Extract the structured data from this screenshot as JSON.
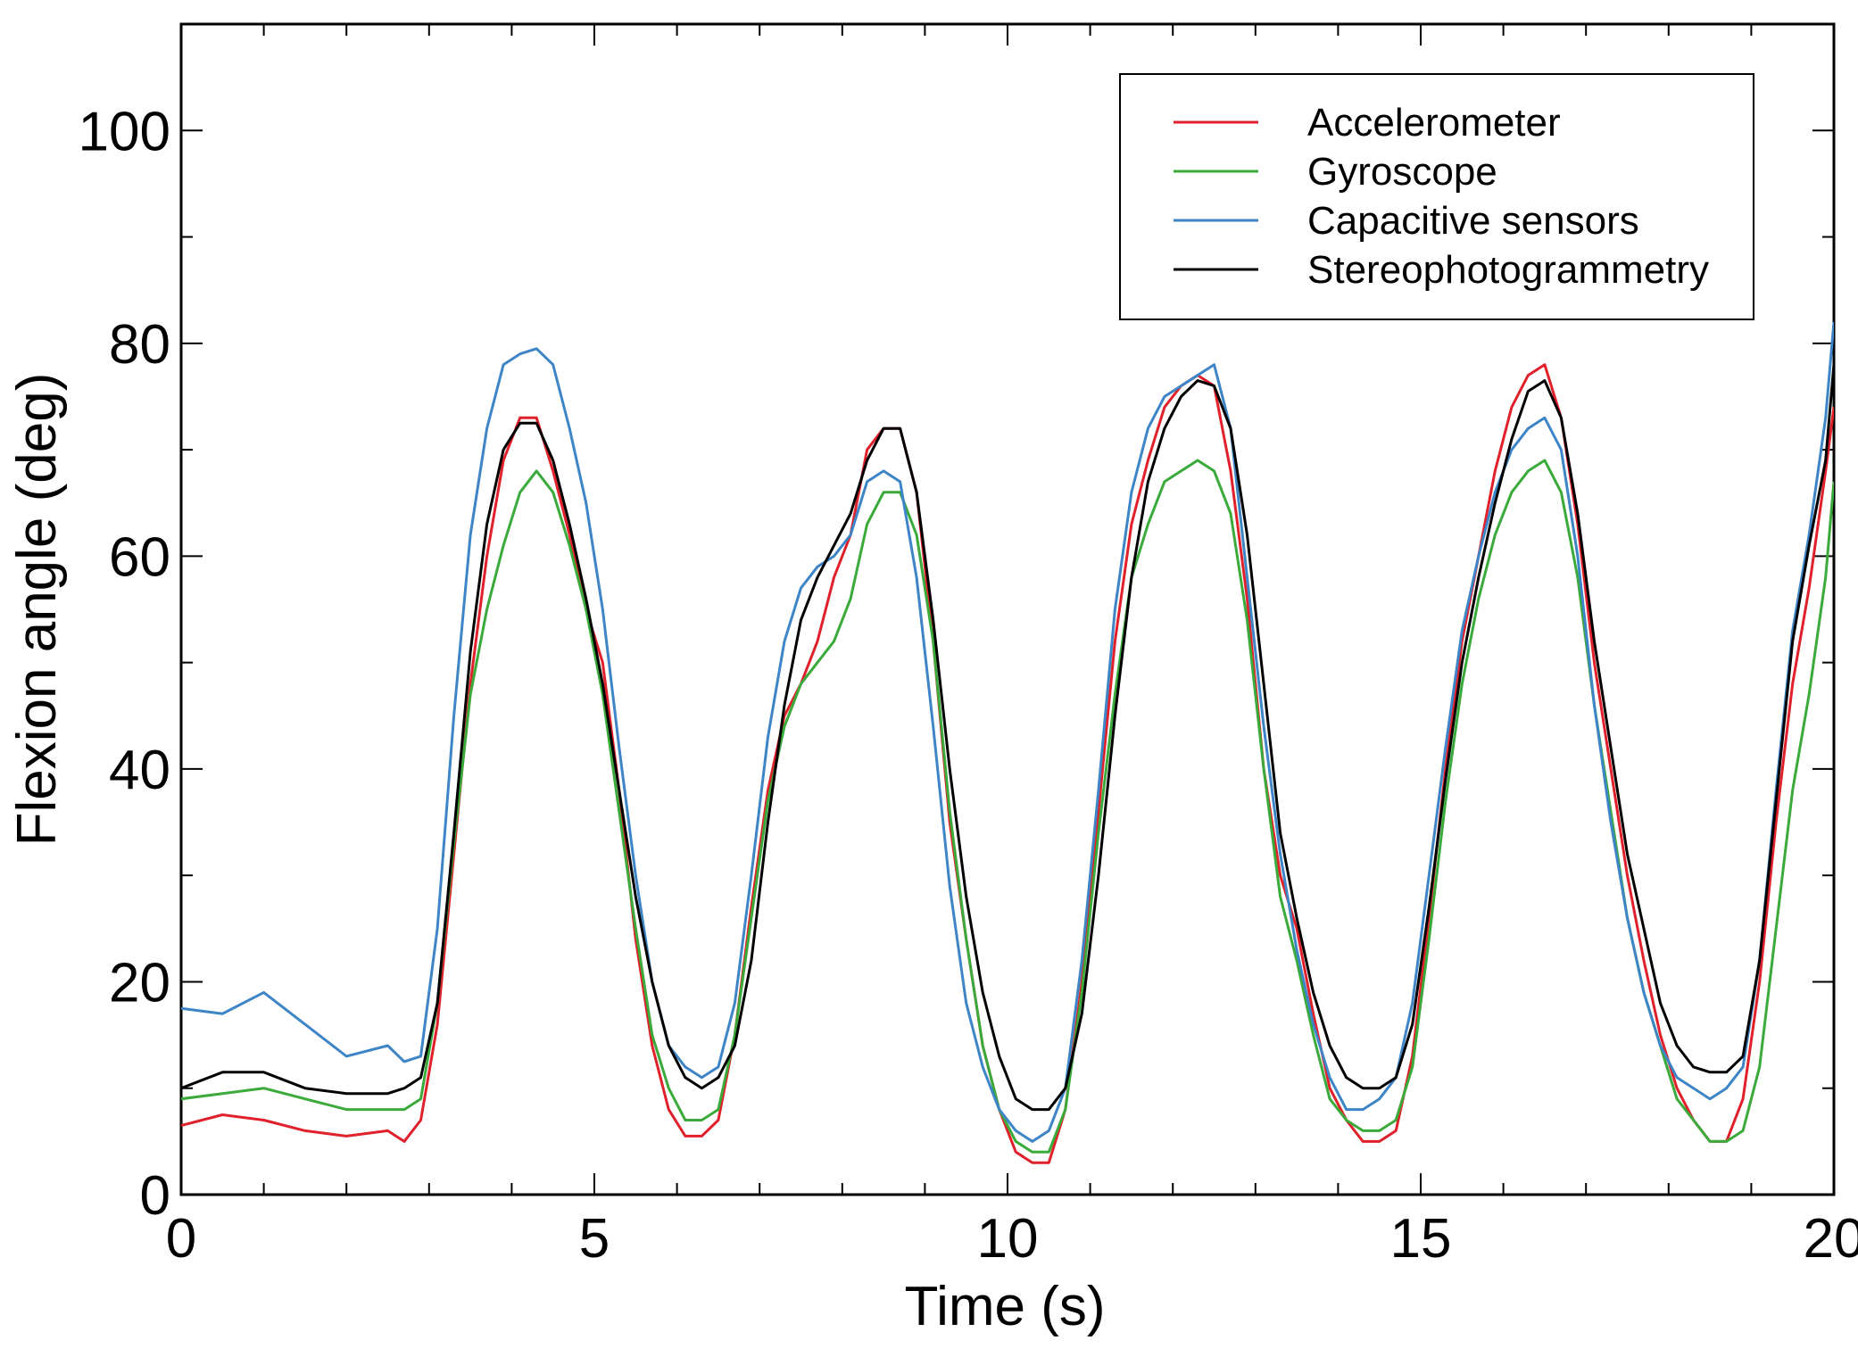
{
  "chart_data": {
    "type": "line",
    "title": "",
    "xlabel": "Time (s)",
    "ylabel": "Flexion angle (deg)",
    "xlim": [
      0,
      20
    ],
    "ylim": [
      0,
      110
    ],
    "xticks": [
      0,
      5,
      10,
      15,
      20
    ],
    "xtick_labels": [
      "0",
      "5",
      "10",
      "15",
      "20"
    ],
    "yticks": [
      0,
      20,
      40,
      60,
      80,
      100
    ],
    "ytick_labels": [
      "0",
      "20",
      "40",
      "60",
      "80",
      "100"
    ],
    "grid": false,
    "legend_position": "top-right",
    "series": [
      {
        "name": "Accelerometer",
        "color": "#e0202a",
        "x": [
          0,
          0.5,
          1.0,
          1.5,
          2.0,
          2.5,
          2.7,
          2.9,
          3.1,
          3.3,
          3.5,
          3.7,
          3.9,
          4.1,
          4.3,
          4.5,
          4.7,
          4.9,
          5.1,
          5.3,
          5.5,
          5.7,
          5.9,
          6.1,
          6.3,
          6.5,
          6.7,
          6.9,
          7.1,
          7.3,
          7.5,
          7.7,
          7.9,
          8.1,
          8.3,
          8.5,
          8.7,
          8.9,
          9.1,
          9.3,
          9.5,
          9.7,
          9.9,
          10.1,
          10.3,
          10.5,
          10.7,
          10.9,
          11.1,
          11.3,
          11.5,
          11.7,
          11.9,
          12.1,
          12.3,
          12.5,
          12.7,
          12.9,
          13.1,
          13.3,
          13.5,
          13.7,
          13.9,
          14.1,
          14.3,
          14.5,
          14.7,
          14.9,
          15.1,
          15.3,
          15.5,
          15.7,
          15.9,
          16.1,
          16.3,
          16.5,
          16.7,
          16.9,
          17.1,
          17.3,
          17.5,
          17.7,
          17.9,
          18.1,
          18.3,
          18.5,
          18.7,
          18.9,
          19.1,
          19.3,
          19.5,
          19.7,
          19.9,
          20.0
        ],
        "y": [
          6.5,
          7.5,
          7,
          6,
          5.5,
          6,
          5,
          7,
          16,
          32,
          48,
          60,
          69,
          73,
          73,
          68,
          62,
          55,
          50,
          38,
          24,
          14,
          8,
          5.5,
          5.5,
          7,
          15,
          27,
          38,
          45,
          48,
          52,
          58,
          62,
          70,
          72,
          72,
          66,
          52,
          35,
          24,
          14,
          8,
          4,
          3,
          3,
          8,
          20,
          36,
          52,
          63,
          69,
          74,
          76,
          77,
          76,
          68,
          56,
          40,
          30,
          25,
          17,
          10,
          7,
          5,
          5,
          6,
          13,
          26,
          40,
          52,
          60,
          68,
          74,
          77,
          78,
          73,
          63,
          50,
          40,
          30,
          22,
          15,
          10,
          7,
          5,
          5,
          9,
          20,
          35,
          48,
          57,
          68,
          74
        ]
      },
      {
        "name": "Gyroscope",
        "color": "#3aaa3a",
        "x": [
          0,
          0.5,
          1.0,
          1.5,
          2.0,
          2.5,
          2.7,
          2.9,
          3.1,
          3.3,
          3.5,
          3.7,
          3.9,
          4.1,
          4.3,
          4.5,
          4.7,
          4.9,
          5.1,
          5.3,
          5.5,
          5.7,
          5.9,
          6.1,
          6.3,
          6.5,
          6.7,
          6.9,
          7.1,
          7.3,
          7.5,
          7.7,
          7.9,
          8.1,
          8.3,
          8.5,
          8.7,
          8.9,
          9.1,
          9.3,
          9.5,
          9.7,
          9.9,
          10.1,
          10.3,
          10.5,
          10.7,
          10.9,
          11.1,
          11.3,
          11.5,
          11.7,
          11.9,
          12.1,
          12.3,
          12.5,
          12.7,
          12.9,
          13.1,
          13.3,
          13.5,
          13.7,
          13.9,
          14.1,
          14.3,
          14.5,
          14.7,
          14.9,
          15.1,
          15.3,
          15.5,
          15.7,
          15.9,
          16.1,
          16.3,
          16.5,
          16.7,
          16.9,
          17.1,
          17.3,
          17.5,
          17.7,
          17.9,
          18.1,
          18.3,
          18.5,
          18.7,
          18.9,
          19.1,
          19.3,
          19.5,
          19.7,
          19.9,
          20.0
        ],
        "y": [
          9,
          9.5,
          10,
          9,
          8,
          8,
          8,
          9,
          18,
          33,
          47,
          55,
          61,
          66,
          68,
          66,
          61,
          55,
          47,
          36,
          25,
          15,
          10,
          7,
          7,
          8,
          15,
          26,
          37,
          44,
          48,
          50,
          52,
          56,
          63,
          66,
          66,
          62,
          52,
          36,
          24,
          14,
          8,
          5,
          4,
          4,
          8,
          19,
          34,
          47,
          58,
          63,
          67,
          68,
          69,
          68,
          64,
          54,
          40,
          28,
          22,
          15,
          9,
          7,
          6,
          6,
          7,
          12,
          24,
          37,
          48,
          56,
          62,
          66,
          68,
          69,
          66,
          58,
          46,
          36,
          26,
          19,
          14,
          9,
          7,
          5,
          5,
          6,
          12,
          25,
          38,
          47,
          58,
          67
        ]
      },
      {
        "name": "Capacitive sensors",
        "color": "#3d85c6",
        "x": [
          0,
          0.5,
          1.0,
          1.5,
          2.0,
          2.5,
          2.7,
          2.9,
          3.1,
          3.3,
          3.5,
          3.7,
          3.9,
          4.1,
          4.3,
          4.5,
          4.7,
          4.9,
          5.1,
          5.3,
          5.5,
          5.7,
          5.9,
          6.1,
          6.3,
          6.5,
          6.7,
          6.9,
          7.1,
          7.3,
          7.5,
          7.7,
          7.9,
          8.1,
          8.3,
          8.5,
          8.7,
          8.9,
          9.1,
          9.3,
          9.5,
          9.7,
          9.9,
          10.1,
          10.3,
          10.5,
          10.7,
          10.9,
          11.1,
          11.3,
          11.5,
          11.7,
          11.9,
          12.1,
          12.3,
          12.5,
          12.7,
          12.9,
          13.1,
          13.3,
          13.5,
          13.7,
          13.9,
          14.1,
          14.3,
          14.5,
          14.7,
          14.9,
          15.1,
          15.3,
          15.5,
          15.7,
          15.9,
          16.1,
          16.3,
          16.5,
          16.7,
          16.9,
          17.1,
          17.3,
          17.5,
          17.7,
          17.9,
          18.1,
          18.3,
          18.5,
          18.7,
          18.9,
          19.1,
          19.3,
          19.5,
          19.7,
          19.9,
          20.0
        ],
        "y": [
          17.5,
          17,
          19,
          16,
          13,
          14,
          12.5,
          13,
          25,
          45,
          62,
          72,
          78,
          79,
          79.5,
          78,
          72,
          65,
          55,
          42,
          30,
          20,
          14,
          12,
          11,
          12,
          18,
          30,
          43,
          52,
          57,
          59,
          60,
          62,
          67,
          68,
          67,
          58,
          44,
          29,
          18,
          12,
          8,
          6,
          5,
          6,
          10,
          22,
          38,
          55,
          66,
          72,
          75,
          76,
          77,
          78,
          72,
          58,
          44,
          32,
          23,
          16,
          11,
          8,
          8,
          9,
          11,
          18,
          30,
          42,
          53,
          60,
          66,
          70,
          72,
          73,
          70,
          60,
          46,
          35,
          26,
          19,
          14,
          11,
          10,
          9,
          10,
          12,
          22,
          38,
          53,
          62,
          73,
          82
        ]
      },
      {
        "name": "Stereophotogrammetry",
        "color": "#000000",
        "x": [
          0,
          0.5,
          1.0,
          1.5,
          2.0,
          2.5,
          2.7,
          2.9,
          3.1,
          3.3,
          3.5,
          3.7,
          3.9,
          4.1,
          4.3,
          4.5,
          4.7,
          4.9,
          5.1,
          5.3,
          5.5,
          5.7,
          5.9,
          6.1,
          6.3,
          6.5,
          6.7,
          6.9,
          7.1,
          7.3,
          7.5,
          7.7,
          7.9,
          8.1,
          8.3,
          8.5,
          8.7,
          8.9,
          9.1,
          9.3,
          9.5,
          9.7,
          9.9,
          10.1,
          10.3,
          10.5,
          10.7,
          10.9,
          11.1,
          11.3,
          11.5,
          11.7,
          11.9,
          12.1,
          12.3,
          12.5,
          12.7,
          12.9,
          13.1,
          13.3,
          13.5,
          13.7,
          13.9,
          14.1,
          14.3,
          14.5,
          14.7,
          14.9,
          15.1,
          15.3,
          15.5,
          15.7,
          15.9,
          16.1,
          16.3,
          16.5,
          16.7,
          16.9,
          17.1,
          17.3,
          17.5,
          17.7,
          17.9,
          18.1,
          18.3,
          18.5,
          18.7,
          18.9,
          19.1,
          19.3,
          19.5,
          19.7,
          19.9,
          20.0
        ],
        "y": [
          10,
          11.5,
          11.5,
          10,
          9.5,
          9.5,
          10,
          11,
          18,
          34,
          51,
          63,
          70,
          72.5,
          72.5,
          69,
          63,
          56,
          48,
          38,
          28,
          20,
          14,
          11,
          10,
          11,
          14,
          22,
          35,
          46,
          54,
          58,
          61,
          64,
          69,
          72,
          72,
          66,
          54,
          40,
          28,
          19,
          13,
          9,
          8,
          8,
          10,
          17,
          30,
          45,
          58,
          67,
          72,
          75,
          76.5,
          76,
          72,
          62,
          48,
          34,
          26,
          19,
          14,
          11,
          10,
          10,
          11,
          16,
          27,
          39,
          50,
          58,
          65,
          71,
          75.5,
          76.5,
          73,
          64,
          52,
          42,
          32,
          25,
          18,
          14,
          12,
          11.5,
          11.5,
          13,
          22,
          37,
          52,
          61,
          69,
          78
        ]
      }
    ]
  }
}
